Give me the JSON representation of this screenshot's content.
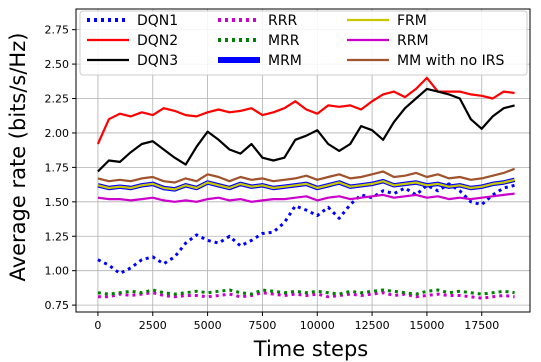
{
  "chart_data": {
    "type": "line",
    "title": "",
    "xlabel": "Time steps",
    "ylabel": "Average rate (bits/s/Hz)",
    "xlim": [
      -1000,
      19700
    ],
    "ylim": [
      0.7,
      2.9
    ],
    "grid": true,
    "legend_placement": "top",
    "legend_columns": 3,
    "xticks": [
      0,
      2500,
      5000,
      7500,
      10000,
      12500,
      15000,
      17500
    ],
    "yticks": [
      0.75,
      1.0,
      1.25,
      1.5,
      1.75,
      2.0,
      2.25,
      2.5,
      2.75
    ],
    "series": [
      {
        "name": "DQN1",
        "color": "#0000ff",
        "style": "dotted",
        "x": [
          0,
          500,
          1000,
          1500,
          2000,
          2500,
          3000,
          3500,
          4000,
          4500,
          5000,
          5500,
          6000,
          6500,
          7000,
          7500,
          8000,
          8500,
          9000,
          9500,
          10000,
          10500,
          11000,
          11500,
          12000,
          12500,
          13000,
          13500,
          14000,
          14500,
          15000,
          15500,
          16000,
          16500,
          17000,
          17500,
          18000,
          18500,
          19000
        ],
        "y": [
          1.08,
          1.04,
          0.98,
          1.02,
          1.08,
          1.1,
          1.05,
          1.1,
          1.2,
          1.26,
          1.22,
          1.2,
          1.25,
          1.18,
          1.22,
          1.27,
          1.28,
          1.35,
          1.47,
          1.44,
          1.4,
          1.46,
          1.38,
          1.48,
          1.55,
          1.53,
          1.58,
          1.56,
          1.6,
          1.55,
          1.62,
          1.58,
          1.63,
          1.58,
          1.5,
          1.48,
          1.55,
          1.6,
          1.62
        ]
      },
      {
        "name": "DQN2",
        "color": "#ff0000",
        "style": "solid",
        "x": [
          0,
          500,
          1000,
          1500,
          2000,
          2500,
          3000,
          3500,
          4000,
          4500,
          5000,
          5500,
          6000,
          6500,
          7000,
          7500,
          8000,
          8500,
          9000,
          9500,
          10000,
          10500,
          11000,
          11500,
          12000,
          12500,
          13000,
          13500,
          14000,
          14500,
          15000,
          15500,
          16000,
          16500,
          17000,
          17500,
          18000,
          18500,
          19000
        ],
        "y": [
          1.92,
          2.1,
          2.14,
          2.12,
          2.15,
          2.13,
          2.18,
          2.16,
          2.13,
          2.12,
          2.15,
          2.17,
          2.15,
          2.16,
          2.18,
          2.13,
          2.15,
          2.18,
          2.23,
          2.17,
          2.14,
          2.2,
          2.19,
          2.2,
          2.17,
          2.23,
          2.28,
          2.3,
          2.26,
          2.32,
          2.4,
          2.3,
          2.3,
          2.3,
          2.28,
          2.27,
          2.25,
          2.3,
          2.29
        ]
      },
      {
        "name": "DQN3",
        "color": "#000000",
        "style": "solid",
        "x": [
          0,
          500,
          1000,
          1500,
          2000,
          2500,
          3000,
          3500,
          4000,
          4500,
          5000,
          5500,
          6000,
          6500,
          7000,
          7500,
          8000,
          8500,
          9000,
          9500,
          10000,
          10500,
          11000,
          11500,
          12000,
          12500,
          13000,
          13500,
          14000,
          14500,
          15000,
          15500,
          16000,
          16500,
          17000,
          17500,
          18000,
          18500,
          19000
        ],
        "y": [
          1.72,
          1.8,
          1.79,
          1.86,
          1.92,
          1.94,
          1.88,
          1.82,
          1.77,
          1.9,
          2.01,
          1.95,
          1.88,
          1.85,
          1.92,
          1.82,
          1.8,
          1.82,
          1.95,
          1.98,
          2.02,
          1.92,
          1.87,
          1.92,
          2.05,
          2.02,
          1.95,
          2.08,
          2.18,
          2.25,
          2.32,
          2.3,
          2.28,
          2.25,
          2.1,
          2.03,
          2.12,
          2.18,
          2.2
        ]
      },
      {
        "name": "RRR",
        "color": "#cc00cc",
        "style": "dotted",
        "x": [
          0,
          500,
          1000,
          1500,
          2000,
          2500,
          3000,
          3500,
          4000,
          4500,
          5000,
          5500,
          6000,
          6500,
          7000,
          7500,
          8000,
          8500,
          9000,
          9500,
          10000,
          10500,
          11000,
          11500,
          12000,
          12500,
          13000,
          13500,
          14000,
          14500,
          15000,
          15500,
          16000,
          16500,
          17000,
          17500,
          18000,
          18500,
          19000
        ],
        "y": [
          0.81,
          0.81,
          0.83,
          0.82,
          0.83,
          0.84,
          0.82,
          0.81,
          0.82,
          0.82,
          0.81,
          0.82,
          0.83,
          0.81,
          0.82,
          0.84,
          0.83,
          0.82,
          0.83,
          0.82,
          0.83,
          0.81,
          0.82,
          0.83,
          0.82,
          0.83,
          0.84,
          0.82,
          0.83,
          0.81,
          0.82,
          0.83,
          0.82,
          0.82,
          0.81,
          0.8,
          0.81,
          0.82,
          0.81
        ]
      },
      {
        "name": "MRR",
        "color": "#008000",
        "style": "dotted",
        "x": [
          0,
          500,
          1000,
          1500,
          2000,
          2500,
          3000,
          3500,
          4000,
          4500,
          5000,
          5500,
          6000,
          6500,
          7000,
          7500,
          8000,
          8500,
          9000,
          9500,
          10000,
          10500,
          11000,
          11500,
          12000,
          12500,
          13000,
          13500,
          14000,
          14500,
          15000,
          15500,
          16000,
          16500,
          17000,
          17500,
          18000,
          18500,
          19000
        ],
        "y": [
          0.84,
          0.83,
          0.84,
          0.85,
          0.84,
          0.86,
          0.84,
          0.83,
          0.84,
          0.85,
          0.84,
          0.85,
          0.86,
          0.84,
          0.83,
          0.86,
          0.85,
          0.84,
          0.85,
          0.84,
          0.85,
          0.84,
          0.83,
          0.85,
          0.84,
          0.85,
          0.86,
          0.85,
          0.84,
          0.83,
          0.85,
          0.86,
          0.84,
          0.85,
          0.84,
          0.83,
          0.84,
          0.85,
          0.84
        ]
      },
      {
        "name": "MRM",
        "color": "#0000ff",
        "style": "thick",
        "x": [
          0,
          500,
          1000,
          1500,
          2000,
          2500,
          3000,
          3500,
          4000,
          4500,
          5000,
          5500,
          6000,
          6500,
          7000,
          7500,
          8000,
          8500,
          9000,
          9500,
          10000,
          10500,
          11000,
          11500,
          12000,
          12500,
          13000,
          13500,
          14000,
          14500,
          15000,
          15500,
          16000,
          16500,
          17000,
          17500,
          18000,
          18500,
          19000
        ],
        "y": [
          1.62,
          1.6,
          1.61,
          1.6,
          1.62,
          1.63,
          1.6,
          1.59,
          1.62,
          1.6,
          1.64,
          1.62,
          1.6,
          1.63,
          1.61,
          1.62,
          1.6,
          1.61,
          1.62,
          1.63,
          1.6,
          1.62,
          1.64,
          1.61,
          1.62,
          1.63,
          1.65,
          1.62,
          1.63,
          1.64,
          1.62,
          1.63,
          1.61,
          1.62,
          1.6,
          1.61,
          1.63,
          1.64,
          1.66
        ]
      },
      {
        "name": "FRM",
        "color": "#c8c800",
        "style": "solid",
        "x": [
          0,
          500,
          1000,
          1500,
          2000,
          2500,
          3000,
          3500,
          4000,
          4500,
          5000,
          5500,
          6000,
          6500,
          7000,
          7500,
          8000,
          8500,
          9000,
          9500,
          10000,
          10500,
          11000,
          11500,
          12000,
          12500,
          13000,
          13500,
          14000,
          14500,
          15000,
          15500,
          16000,
          16500,
          17000,
          17500,
          18000,
          18500,
          19000
        ],
        "y": [
          1.62,
          1.6,
          1.61,
          1.6,
          1.62,
          1.63,
          1.6,
          1.59,
          1.62,
          1.6,
          1.64,
          1.62,
          1.6,
          1.63,
          1.61,
          1.62,
          1.6,
          1.61,
          1.62,
          1.63,
          1.6,
          1.62,
          1.64,
          1.61,
          1.62,
          1.63,
          1.65,
          1.62,
          1.63,
          1.64,
          1.62,
          1.63,
          1.61,
          1.62,
          1.6,
          1.61,
          1.63,
          1.64,
          1.66
        ]
      },
      {
        "name": "RRM",
        "color": "#cc00cc",
        "style": "solid",
        "x": [
          0,
          500,
          1000,
          1500,
          2000,
          2500,
          3000,
          3500,
          4000,
          4500,
          5000,
          5500,
          6000,
          6500,
          7000,
          7500,
          8000,
          8500,
          9000,
          9500,
          10000,
          10500,
          11000,
          11500,
          12000,
          12500,
          13000,
          13500,
          14000,
          14500,
          15000,
          15500,
          16000,
          16500,
          17000,
          17500,
          18000,
          18500,
          19000
        ],
        "y": [
          1.53,
          1.52,
          1.52,
          1.51,
          1.52,
          1.53,
          1.51,
          1.5,
          1.51,
          1.5,
          1.52,
          1.53,
          1.51,
          1.52,
          1.5,
          1.51,
          1.52,
          1.52,
          1.53,
          1.54,
          1.51,
          1.53,
          1.54,
          1.52,
          1.53,
          1.54,
          1.55,
          1.53,
          1.54,
          1.55,
          1.53,
          1.54,
          1.52,
          1.53,
          1.52,
          1.53,
          1.54,
          1.55,
          1.56
        ]
      },
      {
        "name": "MM with no IRS",
        "color": "#a0522d",
        "style": "solid",
        "x": [
          0,
          500,
          1000,
          1500,
          2000,
          2500,
          3000,
          3500,
          4000,
          4500,
          5000,
          5500,
          6000,
          6500,
          7000,
          7500,
          8000,
          8500,
          9000,
          9500,
          10000,
          10500,
          11000,
          11500,
          12000,
          12500,
          13000,
          13500,
          14000,
          14500,
          15000,
          15500,
          16000,
          16500,
          17000,
          17500,
          18000,
          18500,
          19000
        ],
        "y": [
          1.67,
          1.65,
          1.66,
          1.65,
          1.67,
          1.68,
          1.65,
          1.64,
          1.67,
          1.65,
          1.7,
          1.68,
          1.65,
          1.68,
          1.66,
          1.67,
          1.65,
          1.66,
          1.67,
          1.69,
          1.66,
          1.68,
          1.7,
          1.67,
          1.68,
          1.7,
          1.72,
          1.68,
          1.69,
          1.71,
          1.68,
          1.7,
          1.67,
          1.68,
          1.66,
          1.67,
          1.69,
          1.71,
          1.74
        ]
      }
    ]
  }
}
